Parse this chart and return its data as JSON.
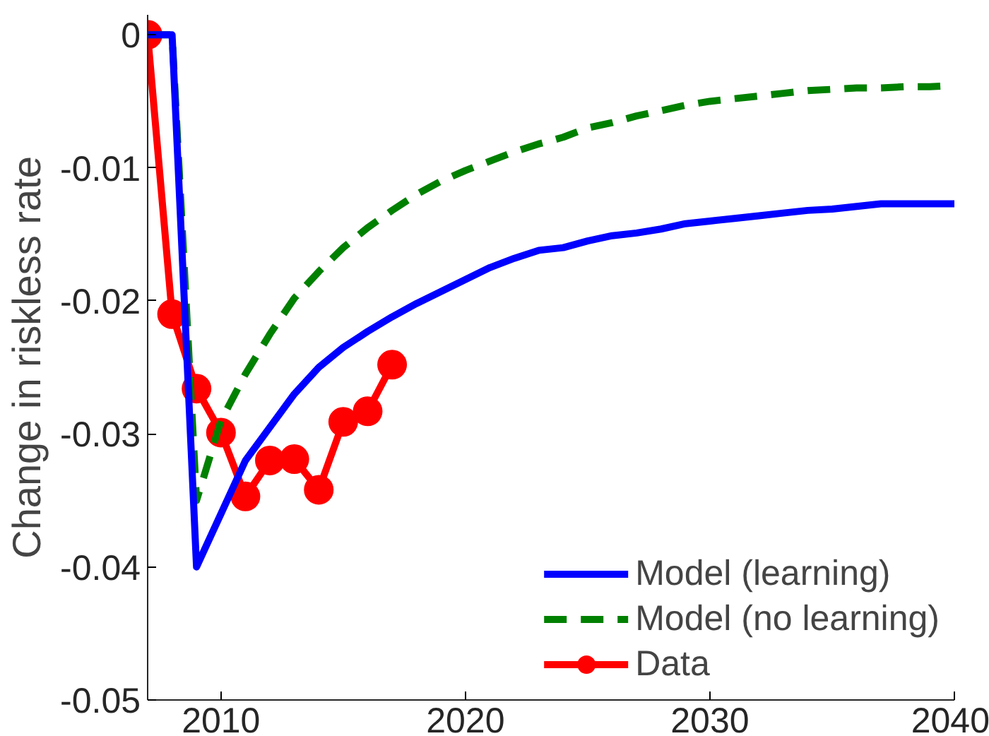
{
  "chart_data": {
    "type": "line",
    "ylabel": "Change in riskless rate",
    "xlim": [
      2007,
      2040
    ],
    "xticks": [
      2010,
      2020,
      2030,
      2040
    ],
    "ylim": [
      -0.05,
      0.0015
    ],
    "yticks": [
      {
        "value": 0,
        "label": "0"
      },
      -0.01,
      -0.02,
      -0.03,
      -0.04,
      -0.05
    ],
    "grid": false,
    "legend": "bottom right",
    "series": [
      {
        "name": "Model (learning)",
        "color": "#0000ff",
        "line_style": "solid",
        "marker": "none",
        "x": [
          2007,
          2008,
          2009,
          2010,
          2011,
          2012,
          2013,
          2014,
          2015,
          2016,
          2017,
          2018,
          2019,
          2020,
          2021,
          2022,
          2023,
          2024,
          2025,
          2026,
          2027,
          2028,
          2029,
          2030,
          2031,
          2032,
          2033,
          2034,
          2035,
          2036,
          2037,
          2038,
          2039,
          2040
        ],
        "values": [
          0,
          0,
          -0.04,
          -0.036,
          -0.032,
          -0.0295,
          -0.027,
          -0.025,
          -0.0235,
          -0.0223,
          -0.0212,
          -0.0202,
          -0.0193,
          -0.0184,
          -0.0175,
          -0.0168,
          -0.0162,
          -0.016,
          -0.0155,
          -0.0151,
          -0.0149,
          -0.0146,
          -0.0142,
          -0.014,
          -0.0138,
          -0.0136,
          -0.0134,
          -0.0132,
          -0.0131,
          -0.0129,
          -0.0127,
          -0.0127,
          -0.0127,
          -0.0127
        ]
      },
      {
        "name": "Model (no learning)",
        "color": "#008000",
        "line_style": "dashed",
        "marker": "none",
        "x": [
          2007,
          2008,
          2009,
          2010,
          2011,
          2012,
          2013,
          2014,
          2015,
          2016,
          2017,
          2018,
          2019,
          2020,
          2021,
          2022,
          2023,
          2024,
          2025,
          2026,
          2027,
          2028,
          2029,
          2030,
          2031,
          2032,
          2033,
          2034,
          2035,
          2036,
          2037,
          2038,
          2039,
          2040
        ],
        "values": [
          0,
          0,
          -0.035,
          -0.029,
          -0.0255,
          -0.0225,
          -0.0198,
          -0.0178,
          -0.016,
          -0.0145,
          -0.0132,
          -0.012,
          -0.011,
          -0.0102,
          -0.0095,
          -0.0088,
          -0.0082,
          -0.0077,
          -0.007,
          -0.0066,
          -0.0061,
          -0.0057,
          -0.0053,
          -0.005,
          -0.0048,
          -0.0046,
          -0.0044,
          -0.0042,
          -0.0041,
          -0.004,
          -0.004,
          -0.0039,
          -0.0039,
          -0.0038
        ]
      },
      {
        "name": "Data",
        "color": "#ff0000",
        "line_style": "solid",
        "marker": "circle",
        "x": [
          2007,
          2008,
          2009,
          2010,
          2011,
          2012,
          2013,
          2014,
          2015,
          2016,
          2017
        ],
        "values": [
          0,
          -0.021,
          -0.0266,
          -0.0299,
          -0.0347,
          -0.032,
          -0.0319,
          -0.0342,
          -0.0291,
          -0.0283,
          -0.0248
        ]
      }
    ]
  }
}
